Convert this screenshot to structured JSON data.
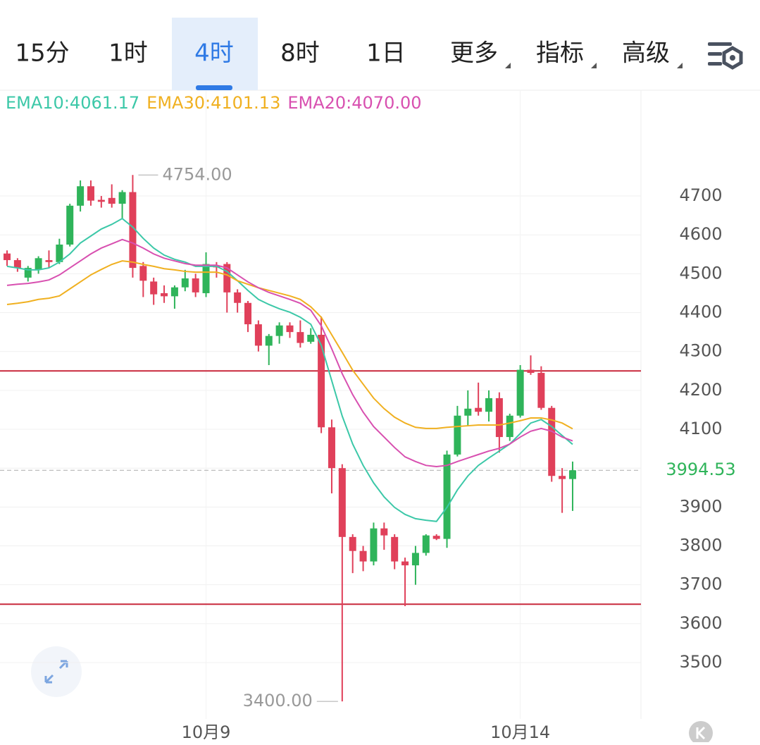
{
  "tabs": [
    "15分",
    "1时",
    "4时",
    "8时",
    "1日",
    "更多",
    "指标",
    "高级"
  ],
  "active_tab": 2,
  "chart_data": {
    "type": "candlestick",
    "categories": [
      null,
      null,
      null,
      null,
      null,
      null,
      null,
      null,
      null,
      null,
      null,
      null,
      null,
      null,
      null,
      null,
      null,
      null,
      null,
      "10月9",
      null,
      null,
      null,
      null,
      null,
      null,
      null,
      null,
      null,
      null,
      null,
      null,
      null,
      null,
      null,
      null,
      null,
      null,
      null,
      null,
      null,
      null,
      null,
      null,
      null,
      null,
      null,
      null,
      null,
      "10月14",
      null,
      null,
      null,
      null,
      null
    ],
    "open": [
      4552,
      4535,
      4490,
      4510,
      4535,
      4530,
      4575,
      4675,
      4725,
      4690,
      4695,
      4680,
      4710,
      4520,
      4480,
      4450,
      4442,
      4465,
      4488,
      4450,
      4520,
      4525,
      4452,
      4425,
      4370,
      4315,
      4340,
      4367,
      4350,
      4325,
      4343,
      4105,
      4000,
      3823,
      3787,
      3760,
      3845,
      3823,
      3760,
      3750,
      3782,
      3826,
      3818,
      4035,
      4135,
      4155,
      4145,
      4180,
      4080,
      4135,
      4253,
      4245,
      4155,
      3980,
      3972
    ],
    "high": [
      4560,
      4540,
      4520,
      4545,
      4560,
      4590,
      4680,
      4740,
      4740,
      4700,
      4730,
      4715,
      4754,
      4530,
      4490,
      4470,
      4470,
      4510,
      4500,
      4555,
      4530,
      4530,
      4460,
      4430,
      4380,
      4345,
      4375,
      4375,
      4380,
      4360,
      4390,
      4125,
      4010,
      3830,
      3800,
      3860,
      3860,
      3830,
      3770,
      3800,
      3830,
      3830,
      4045,
      4160,
      4200,
      4220,
      4200,
      4195,
      4140,
      4265,
      4290,
      4262,
      4160,
      4000,
      4017
    ],
    "low": [
      4520,
      4505,
      4480,
      4500,
      4515,
      4525,
      4570,
      4660,
      4675,
      4670,
      4670,
      4640,
      4490,
      4440,
      4420,
      4425,
      4410,
      4455,
      4440,
      4440,
      4490,
      4400,
      4400,
      4350,
      4300,
      4265,
      4320,
      4335,
      4310,
      4320,
      4090,
      3935,
      3400,
      3730,
      3735,
      3750,
      3790,
      3740,
      3645,
      3700,
      3775,
      3815,
      3795,
      4030,
      4110,
      4135,
      4120,
      4040,
      4070,
      4130,
      4240,
      4150,
      3965,
      3885,
      3890
    ],
    "close": [
      4535,
      4515,
      4515,
      4540,
      4530,
      4575,
      4675,
      4725,
      4688,
      4685,
      4680,
      4710,
      4515,
      4482,
      4447,
      4442,
      4465,
      4488,
      4452,
      4525,
      4518,
      4452,
      4425,
      4370,
      4315,
      4340,
      4367,
      4350,
      4322,
      4343,
      4105,
      4000,
      3823,
      3787,
      3760,
      3845,
      3827,
      3760,
      3750,
      3782,
      3827,
      3818,
      4035,
      4135,
      4153,
      4145,
      4180,
      4080,
      4135,
      4253,
      4245,
      4155,
      3980,
      3972,
      3994.53
    ],
    "up_color": "#2fb45a",
    "down_color": "#e0405a",
    "series": [
      {
        "name": "EMA10",
        "color": "#3cc8a8",
        "legend_value": {
          "value": 4061.17,
          "label": "4061.17"
        },
        "values": [
          4519,
          4515,
          4510,
          4510,
          4515,
          4530,
          4551,
          4579,
          4597,
          4615,
          4627,
          4642,
          4620,
          4591,
          4566,
          4548,
          4537,
          4530,
          4519,
          4519,
          4519,
          4506,
          4482,
          4457,
          4434,
          4421,
          4410,
          4401,
          4388,
          4370,
          4316,
          4225,
          4134,
          4062,
          4007,
          3962,
          3926,
          3899,
          3881,
          3870,
          3866,
          3863,
          3899,
          3944,
          3980,
          4007,
          4026,
          4044,
          4062,
          4089,
          4116,
          4125,
          4107,
          4084,
          4061.17
        ]
      },
      {
        "name": "EMA30",
        "color": "#f0b020",
        "legend_value": {
          "value": 4101.13,
          "label": "4101.13"
        },
        "values": [
          4421,
          4424,
          4428,
          4434,
          4437,
          4443,
          4461,
          4479,
          4497,
          4511,
          4524,
          4533,
          4530,
          4524,
          4519,
          4513,
          4510,
          4506,
          4504,
          4504,
          4504,
          4497,
          4482,
          4473,
          4464,
          4457,
          4450,
          4443,
          4434,
          4415,
          4388,
          4343,
          4298,
          4252,
          4216,
          4180,
          4153,
          4131,
          4116,
          4105,
          4102,
          4102,
          4105,
          4107,
          4109,
          4111,
          4111,
          4111,
          4116,
          4122,
          4129,
          4129,
          4124,
          4116,
          4101.13
        ]
      },
      {
        "name": "EMA20",
        "color": "#d850b0",
        "legend_value": {
          "value": 4070,
          "label": "4070.00"
        },
        "values": [
          4470,
          4473,
          4475,
          4479,
          4484,
          4497,
          4515,
          4533,
          4551,
          4566,
          4577,
          4588,
          4579,
          4566,
          4551,
          4540,
          4533,
          4526,
          4522,
          4522,
          4522,
          4515,
          4497,
          4479,
          4464,
          4452,
          4443,
          4434,
          4424,
          4406,
          4366,
          4307,
          4243,
          4189,
          4144,
          4107,
          4080,
          4053,
          4029,
          4017,
          4007,
          4004,
          4007,
          4017,
          4026,
          4035,
          4044,
          4051,
          4062,
          4080,
          4095,
          4102,
          4095,
          4080,
          4070
        ]
      }
    ],
    "legend_separator": ":",
    "ylim": [
      3355,
      4972
    ],
    "yticks": [
      3500,
      3600,
      3700,
      3800,
      3900,
      4000,
      4100,
      4200,
      4300,
      4400,
      4500,
      4600,
      4700
    ],
    "grid": true,
    "reference_lines": [
      {
        "value": 4250,
        "color": "#c8283c"
      },
      {
        "value": 3650,
        "color": "#c8283c"
      }
    ],
    "last_price": {
      "value": 3994.53,
      "color": "#2fb45a"
    },
    "max_label": {
      "value": 4754,
      "label": "4754.00",
      "index": 12
    },
    "min_label": {
      "value": 3400,
      "label": "3400.00",
      "index": 32
    }
  }
}
